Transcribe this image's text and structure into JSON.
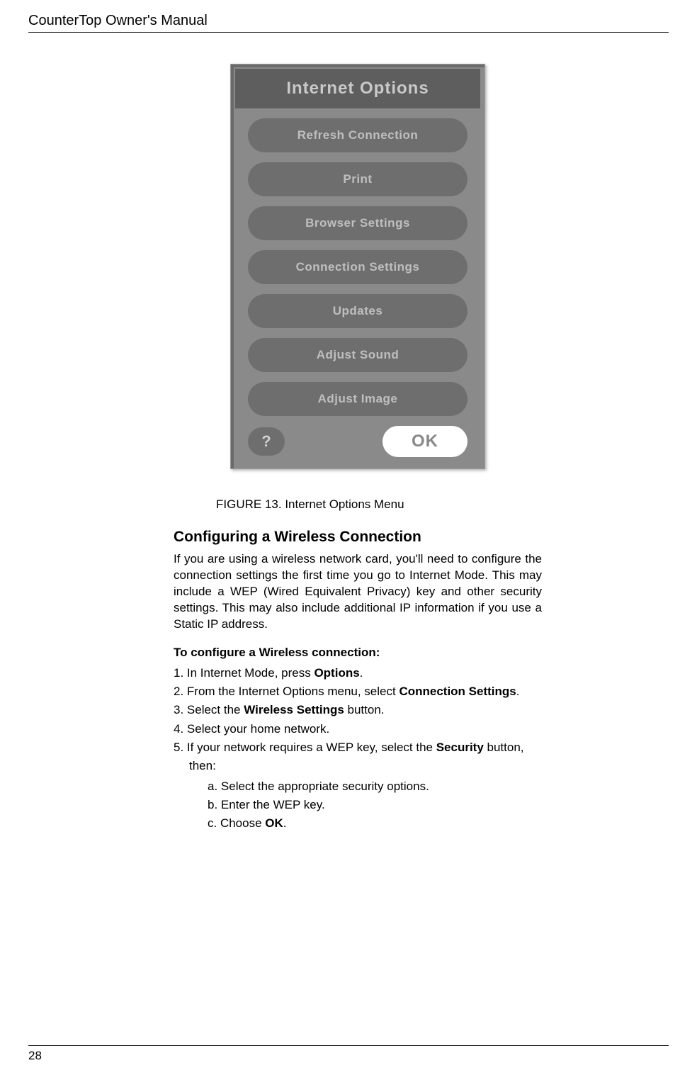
{
  "header": {
    "title": "CounterTop Owner's Manual"
  },
  "menu": {
    "title": "Internet Options",
    "buttons": [
      "Refresh Connection",
      "Print",
      "Browser Settings",
      "Connection Settings",
      "Updates",
      "Adjust Sound",
      "Adjust Image"
    ],
    "help": "?",
    "ok": "OK"
  },
  "figure": {
    "label": "FIGURE 13.",
    "caption": "Internet Options Menu"
  },
  "section": {
    "heading": "Configuring a Wireless Connection",
    "body": "If you are using a wireless network card, you'll need to configure the connection settings the first time you go to Internet Mode. This may include a WEP (Wired Equivalent Privacy) key and other security settings. This may also include additional IP information if you use a Static IP address.",
    "subheading": "To configure a Wireless connection:",
    "steps": {
      "s1a": "1. In Internet Mode, press ",
      "s1b": "Options",
      "s1c": ".",
      "s2a": "2. From the Internet Options menu, select ",
      "s2b": "Connection Settings",
      "s2c": ".",
      "s3a": "3. Select the  ",
      "s3b": "Wireless Settings",
      "s3c": " button.",
      "s4": "4. Select your home network.",
      "s5a": "5. If your network requires a WEP key, select the ",
      "s5b": "Security",
      "s5c": " button, then:",
      "a": "a.    Select the appropriate security options.",
      "b": "b.    Enter the WEP key.",
      "c1": "c.    Choose ",
      "c2": "OK",
      "c3": "."
    }
  },
  "footer": {
    "page": "28"
  }
}
